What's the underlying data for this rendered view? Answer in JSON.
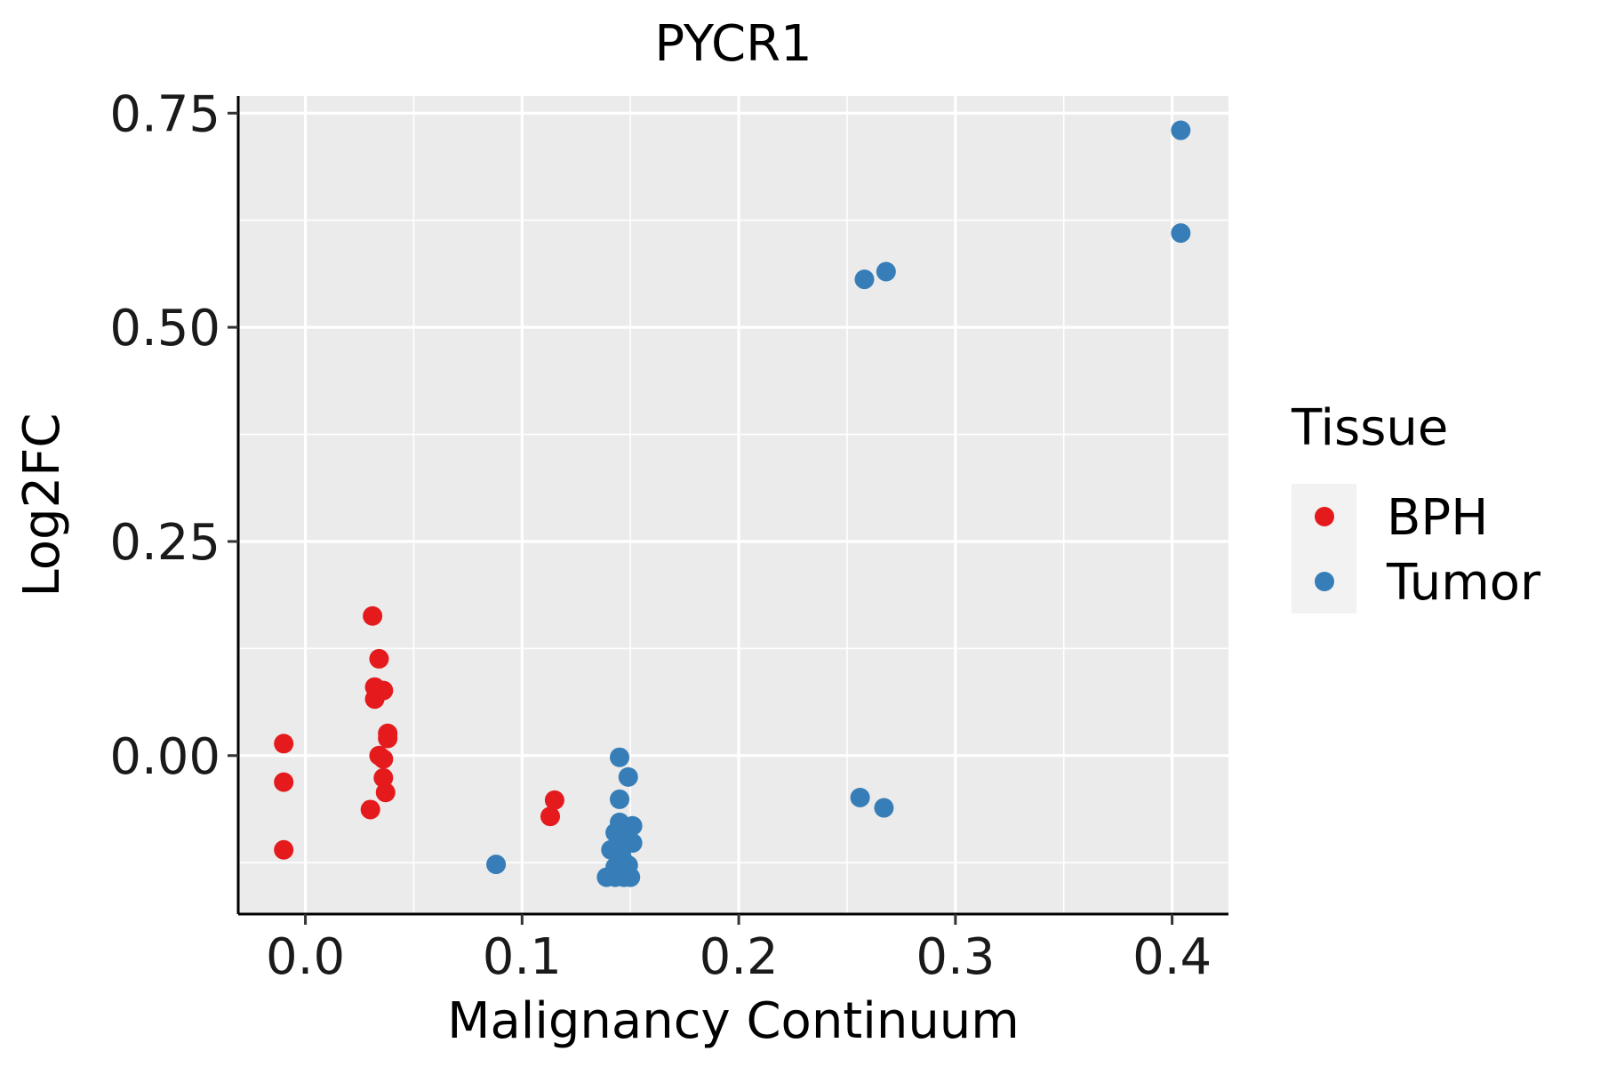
{
  "chart_data": {
    "type": "scatter",
    "title": "PYCR1",
    "xlabel": "Malignancy Continuum",
    "ylabel": "Log2FC",
    "xlim": [
      -0.031,
      0.426
    ],
    "ylim": [
      -0.185,
      0.77
    ],
    "x_ticks": [
      0.0,
      0.1,
      0.2,
      0.3,
      0.4
    ],
    "x_tick_labels": [
      "0.0",
      "0.1",
      "0.2",
      "0.3",
      "0.4"
    ],
    "y_ticks": [
      0.0,
      0.25,
      0.5,
      0.75
    ],
    "y_tick_labels": [
      "0.00",
      "0.25",
      "0.50",
      "0.75"
    ],
    "grid": true,
    "legend": {
      "title": "Tissue",
      "position": "right",
      "entries": [
        {
          "name": "BPH",
          "color": "#E41A1C"
        },
        {
          "name": "Tumor",
          "color": "#377EB8"
        }
      ]
    },
    "series": [
      {
        "name": "BPH",
        "color": "#E41A1C",
        "points": [
          {
            "x": -0.01,
            "y": 0.014
          },
          {
            "x": -0.01,
            "y": -0.031
          },
          {
            "x": -0.01,
            "y": -0.11
          },
          {
            "x": 0.031,
            "y": 0.163
          },
          {
            "x": 0.034,
            "y": 0.113
          },
          {
            "x": 0.032,
            "y": 0.08
          },
          {
            "x": 0.036,
            "y": 0.076
          },
          {
            "x": 0.032,
            "y": 0.066
          },
          {
            "x": 0.038,
            "y": 0.026
          },
          {
            "x": 0.038,
            "y": 0.02
          },
          {
            "x": 0.034,
            "y": 0.0
          },
          {
            "x": 0.036,
            "y": -0.004
          },
          {
            "x": 0.036,
            "y": -0.026
          },
          {
            "x": 0.037,
            "y": -0.043
          },
          {
            "x": 0.03,
            "y": -0.063
          },
          {
            "x": 0.115,
            "y": -0.052
          },
          {
            "x": 0.113,
            "y": -0.071
          }
        ]
      },
      {
        "name": "Tumor",
        "color": "#377EB8",
        "points": [
          {
            "x": 0.088,
            "y": -0.127
          },
          {
            "x": 0.145,
            "y": -0.002
          },
          {
            "x": 0.149,
            "y": -0.025
          },
          {
            "x": 0.145,
            "y": -0.051
          },
          {
            "x": 0.145,
            "y": -0.078
          },
          {
            "x": 0.151,
            "y": -0.082
          },
          {
            "x": 0.143,
            "y": -0.09
          },
          {
            "x": 0.148,
            "y": -0.093
          },
          {
            "x": 0.151,
            "y": -0.102
          },
          {
            "x": 0.145,
            "y": -0.104
          },
          {
            "x": 0.141,
            "y": -0.11
          },
          {
            "x": 0.146,
            "y": -0.118
          },
          {
            "x": 0.149,
            "y": -0.128
          },
          {
            "x": 0.143,
            "y": -0.13
          },
          {
            "x": 0.139,
            "y": -0.142
          },
          {
            "x": 0.143,
            "y": -0.142
          },
          {
            "x": 0.147,
            "y": -0.142
          },
          {
            "x": 0.15,
            "y": -0.142
          },
          {
            "x": 0.258,
            "y": 0.556
          },
          {
            "x": 0.268,
            "y": 0.565
          },
          {
            "x": 0.256,
            "y": -0.049
          },
          {
            "x": 0.267,
            "y": -0.061
          },
          {
            "x": 0.404,
            "y": 0.73
          },
          {
            "x": 0.404,
            "y": 0.61
          }
        ]
      }
    ]
  }
}
